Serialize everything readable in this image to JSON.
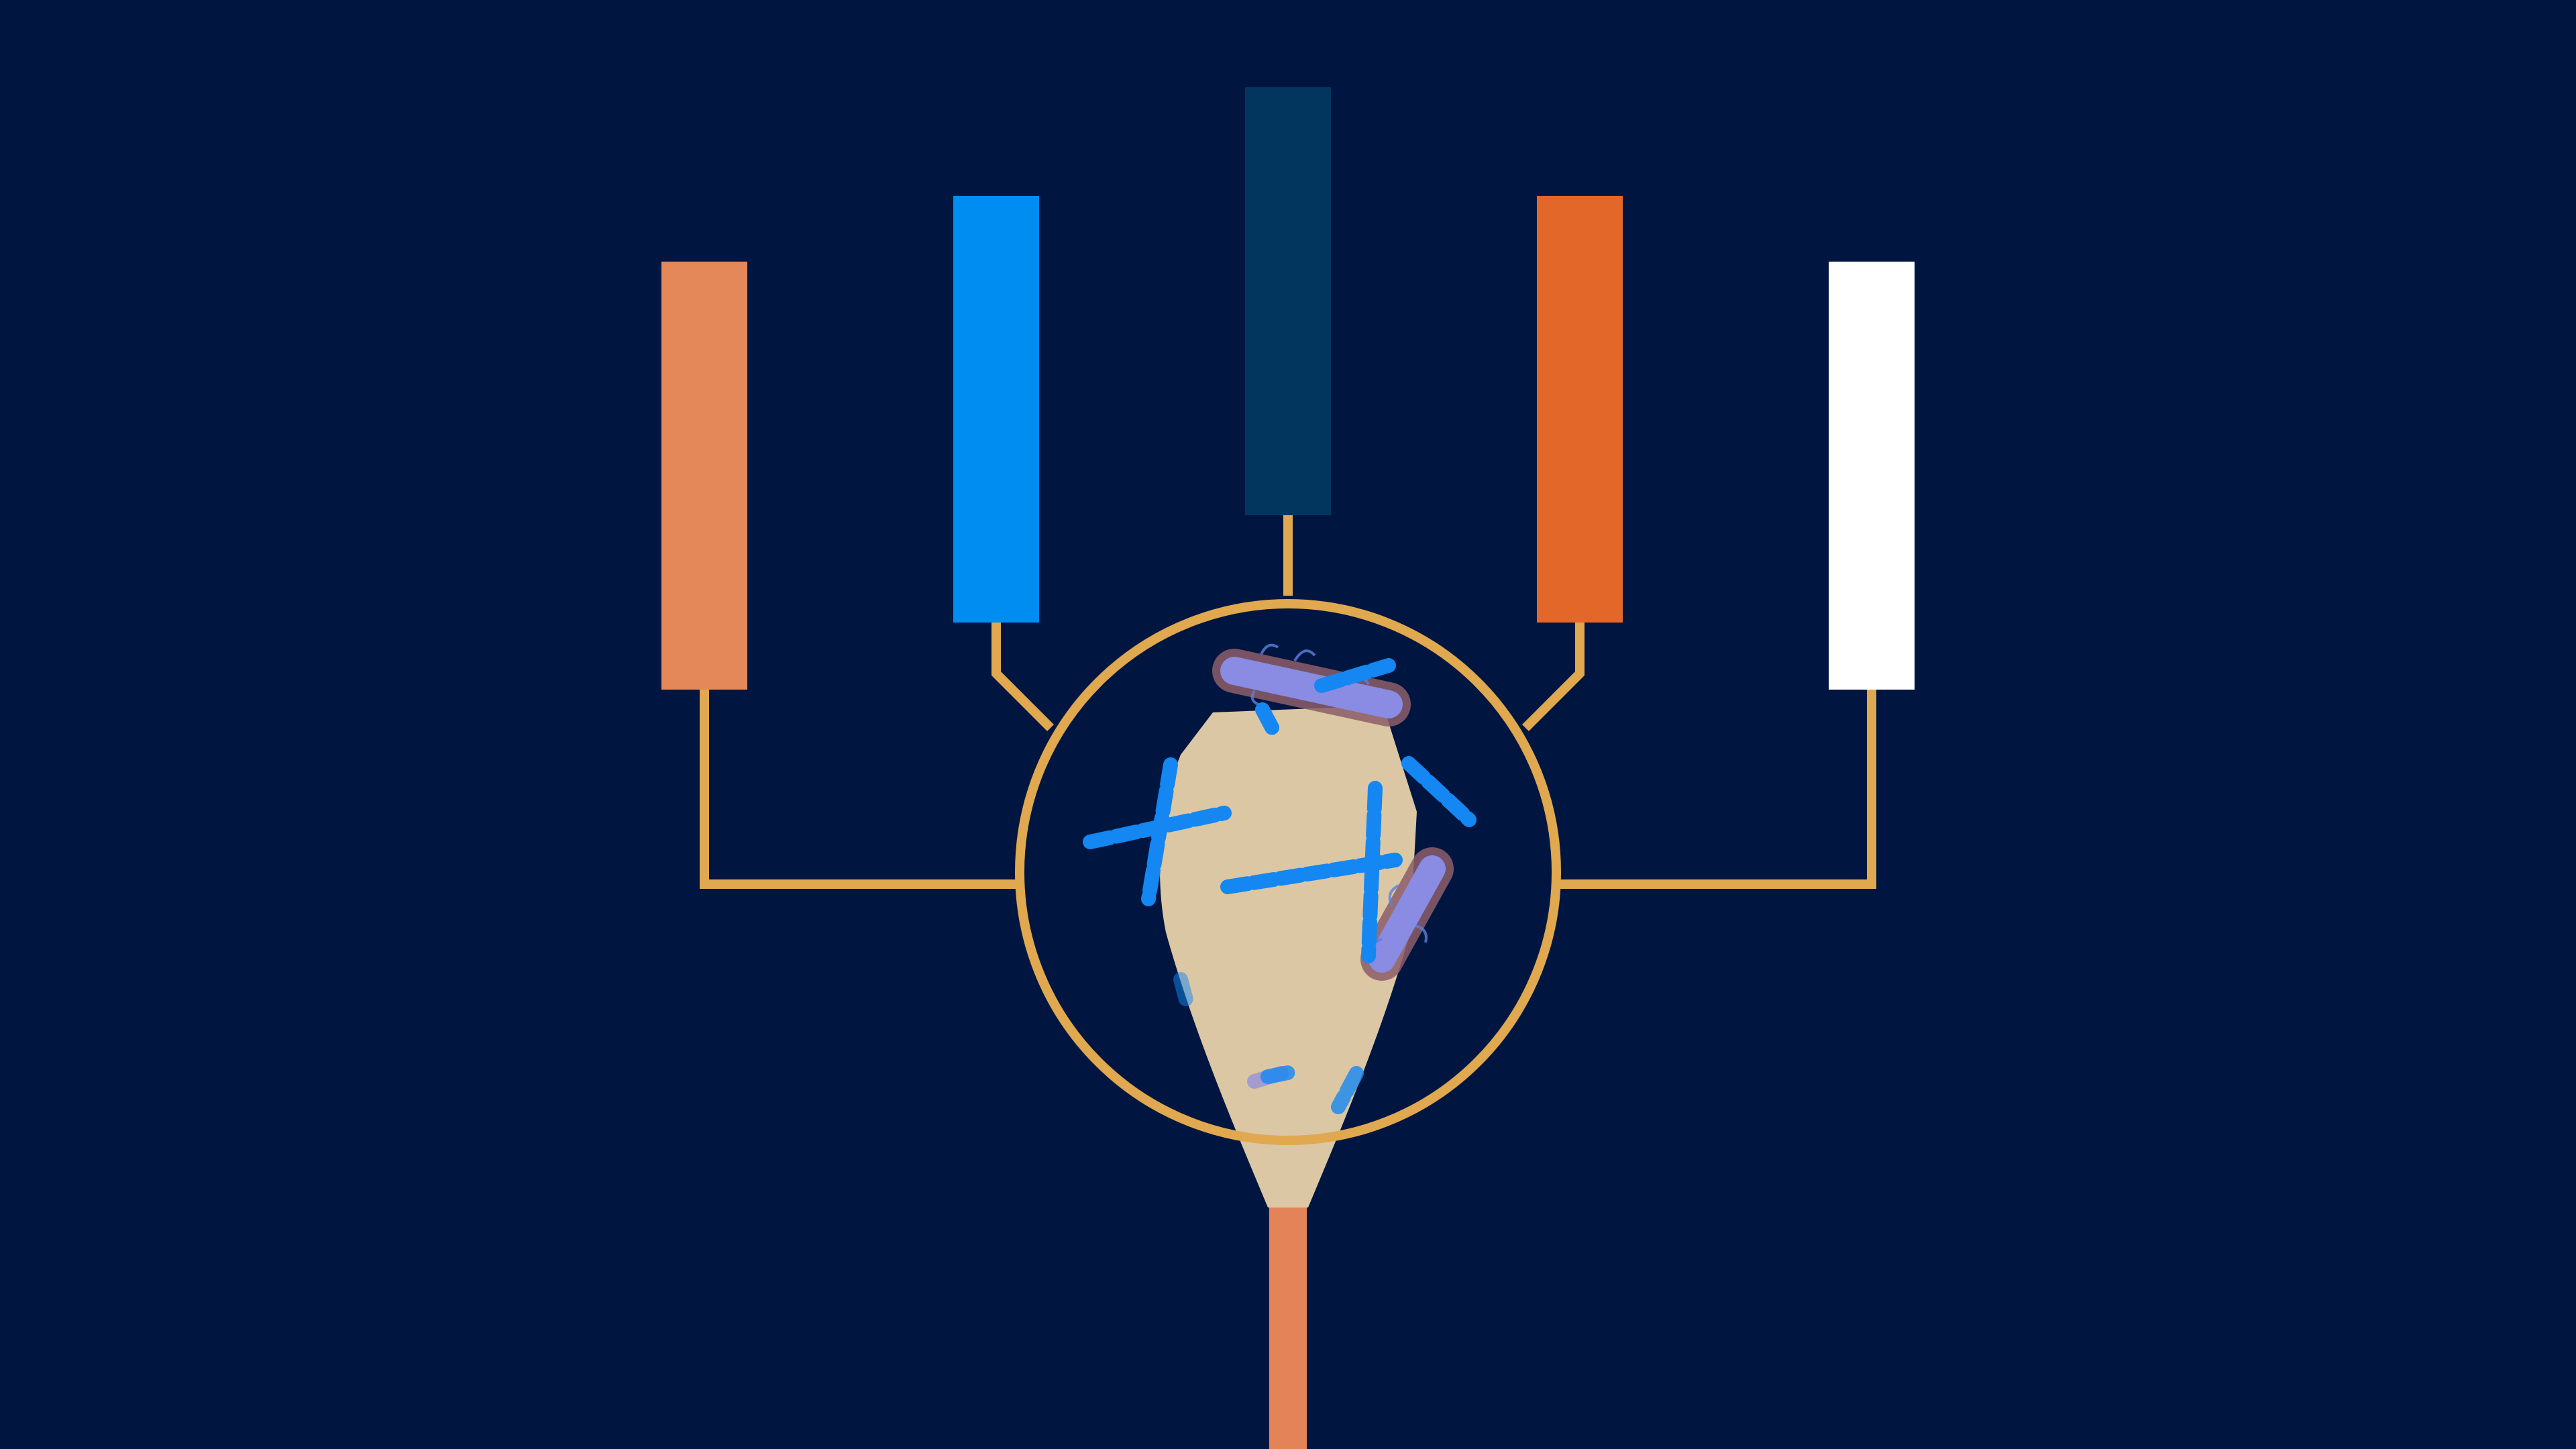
{
  "colors": {
    "background": "#001640",
    "connector": "#E0A84F",
    "swab_head": "#DCC7A4",
    "swab_stick": "#E48357",
    "bar_light_orange": "#E48859",
    "bar_bright_blue": "#008DF2",
    "bar_dark_navy": "#02365E",
    "bar_deep_orange": "#E4672A",
    "bar_white": "#FFFFFF",
    "chain_bacteria": "#1487F2",
    "rod_bacteria": "#8A8BE3",
    "rod_outline": "#8C5E6A"
  },
  "bars": [
    {
      "id": "bar-1",
      "color": "#E48859"
    },
    {
      "id": "bar-2",
      "color": "#008DF2"
    },
    {
      "id": "bar-3",
      "color": "#02365E"
    },
    {
      "id": "bar-4",
      "color": "#E4672A"
    },
    {
      "id": "bar-5",
      "color": "#FFFFFF"
    }
  ],
  "icons": {
    "magnifier": "magnifier-ring-icon",
    "swab": "cotton-swab-icon",
    "chain_bacterium": "streptococcus-chain-icon",
    "rod_bacterium": "bacillus-rod-icon"
  }
}
